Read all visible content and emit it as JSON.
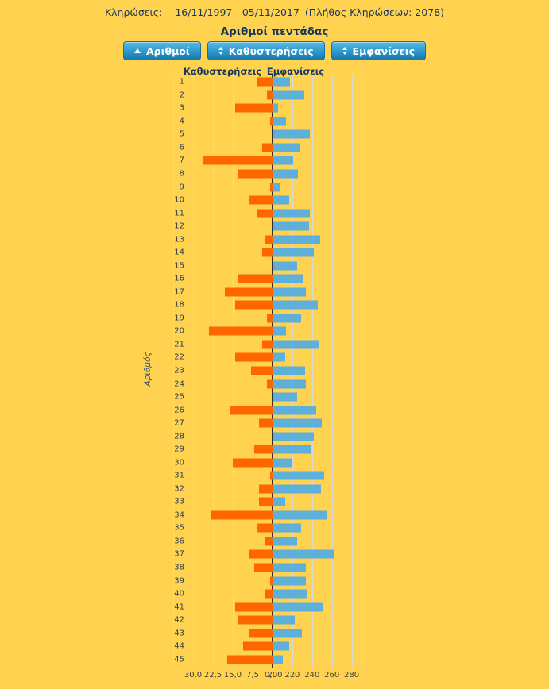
{
  "colors": {
    "background": "#FFD24F",
    "delay_bar": "#FF6600",
    "appearance_bar": "#5FAFDB",
    "zero_axis_line": "#2E2E2E",
    "gridline": "#D9D9D9",
    "heading_text": "#17375D",
    "button_gradient_top": "#5ABAE6",
    "button_gradient_bottom": "#1478AC",
    "button_text": "#FFFFFF"
  },
  "header": {
    "label": "Κληρώσεις:",
    "range": "16/11/1997 - 05/11/2017",
    "count_note": "(Πλήθος Κληρώσεων: 2078)"
  },
  "title": "Αριθμοί πεντάδας",
  "sort_buttons": [
    {
      "label": "Αριθμοί",
      "sort_state": "ascending"
    },
    {
      "label": "Καθυστερήσεις",
      "sort_state": "none"
    },
    {
      "label": "Εμφανίσεις",
      "sort_state": "none"
    }
  ],
  "chart_data": {
    "type": "bar",
    "variant": "diverging-horizontal",
    "title": "Αριθμοί πεντάδας",
    "ylabel": "Αριθμός",
    "grid": true,
    "left_series": {
      "name": "Καθυστερήσεις",
      "color": "#FF6600"
    },
    "right_series": {
      "name": "Εμφανίσεις",
      "color": "#5FAFDB"
    },
    "left_axis": {
      "max": 37.5,
      "ticks": [
        {
          "label": "30,0",
          "v": 30
        },
        {
          "label": "22,5",
          "v": 22.5
        },
        {
          "label": "15,0",
          "v": 15
        },
        {
          "label": "7,5",
          "v": 7.5
        },
        {
          "label": "0,0",
          "v": 0
        }
      ]
    },
    "right_axis": {
      "min": 200,
      "max": 290,
      "ticks": [
        {
          "label": "200",
          "v": 200
        },
        {
          "label": "220",
          "v": 220
        },
        {
          "label": "240",
          "v": 240
        },
        {
          "label": "260",
          "v": 260
        },
        {
          "label": "280",
          "v": 280
        }
      ]
    },
    "categories": [
      1,
      2,
      3,
      4,
      5,
      6,
      7,
      8,
      9,
      10,
      11,
      12,
      13,
      14,
      15,
      16,
      17,
      18,
      19,
      20,
      21,
      22,
      23,
      24,
      25,
      26,
      27,
      28,
      29,
      30,
      31,
      32,
      33,
      34,
      35,
      36,
      37,
      38,
      39,
      40,
      41,
      42,
      43,
      44,
      45
    ],
    "series": [
      {
        "name": "Καθυστερήσεις",
        "values": [
          6,
          2,
          14,
          1,
          0,
          4,
          26,
          13,
          1,
          9,
          6,
          0,
          3,
          4,
          0,
          13,
          18,
          14,
          2,
          24,
          4,
          14,
          8,
          2,
          0,
          16,
          5,
          0,
          7,
          15,
          1,
          5,
          5,
          23,
          6,
          3,
          9,
          7,
          1,
          3,
          14,
          13,
          9,
          11,
          17
        ]
      },
      {
        "name": "Εμφανίσεις",
        "values": [
          217,
          231,
          205,
          213,
          237,
          227,
          220,
          225,
          206,
          216,
          237,
          236,
          247,
          241,
          224,
          230,
          233,
          245,
          228,
          213,
          246,
          212,
          232,
          233,
          224,
          243,
          249,
          241,
          238,
          219,
          251,
          248,
          212,
          254,
          228,
          224,
          262,
          233,
          233,
          234,
          250,
          222,
          229,
          216,
          210
        ]
      }
    ]
  }
}
